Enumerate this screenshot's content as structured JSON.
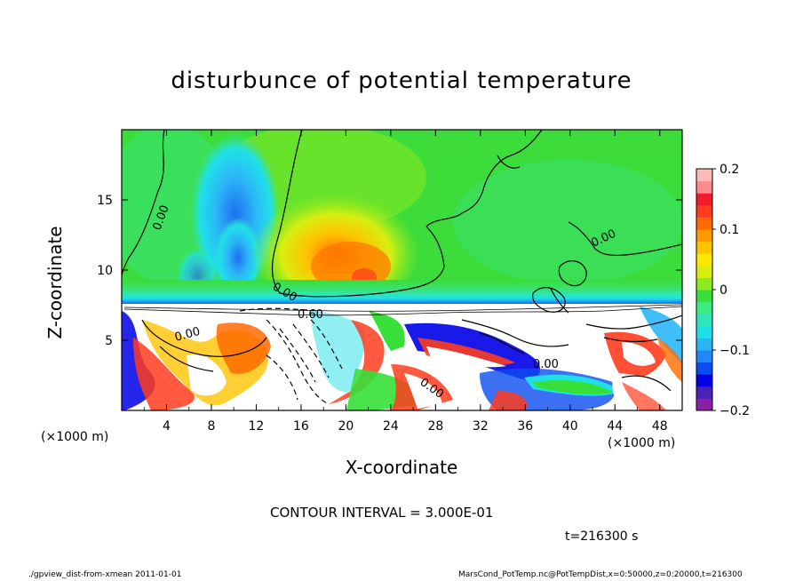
{
  "figure": {
    "title": "disturbunce of potential temperature",
    "contour_interval": "CONTOUR INTERVAL = 3.000E-01",
    "time_label": "t=216300 s",
    "footer_left": "./gpview_dist-from-xmean  2011-01-01",
    "footer_right": "MarsCond_PotTemp.nc@PotTempDist,x=0:50000,z=0:20000,t=216300"
  },
  "chart_data": {
    "type": "heatmap",
    "title": "disturbunce of potential temperature",
    "xlabel": "X-coordinate",
    "ylabel": "Z-coordinate",
    "x_unit": "(×1000 m)",
    "xlim": [
      0,
      50
    ],
    "ylim": [
      0,
      20
    ],
    "x_ticks": [
      "4",
      "8",
      "12",
      "16",
      "20",
      "24",
      "28",
      "32",
      "36",
      "40",
      "44",
      "48"
    ],
    "y_ticks": [
      "5",
      "10",
      "15"
    ],
    "colorbar": {
      "range": [
        -0.2,
        0.2
      ],
      "tick_labels": [
        "0.2",
        "0.1",
        "0",
        "−0.1",
        "−0.2"
      ],
      "colors": [
        "#8B1FA6",
        "#4B22B8",
        "#0000E8",
        "#0A4CF0",
        "#1F8AF5",
        "#2BB7F7",
        "#1FE0E8",
        "#2FE6B8",
        "#3DEB85",
        "#36E038",
        "#8BEA20",
        "#D8EE10",
        "#FFE800",
        "#FFC300",
        "#FF9B00",
        "#FF6A00",
        "#FF3C1E",
        "#F01C2A",
        "#FF8C8C",
        "#FFBABA"
      ]
    },
    "contour_labels": [
      "0.00",
      "0.00",
      "0.00",
      "0.00",
      "0.00",
      "0.00",
      "0.60"
    ],
    "features": [
      {
        "kind": "warm",
        "x": 20.5,
        "z": 11.5,
        "value": 0.1
      },
      {
        "kind": "warm",
        "x": 21.5,
        "z": 10.0,
        "value": 0.14
      },
      {
        "kind": "cool",
        "x": 10.0,
        "z": 15.5,
        "value": -0.08
      },
      {
        "kind": "cool",
        "x": 10.5,
        "z": 12.0,
        "value": -0.06
      },
      {
        "kind": "cool",
        "x": 6.5,
        "z": 10.0,
        "value": -0.03
      },
      {
        "kind": "mixed",
        "x": 25.0,
        "z": 3.5,
        "value": 0.0
      }
    ]
  }
}
